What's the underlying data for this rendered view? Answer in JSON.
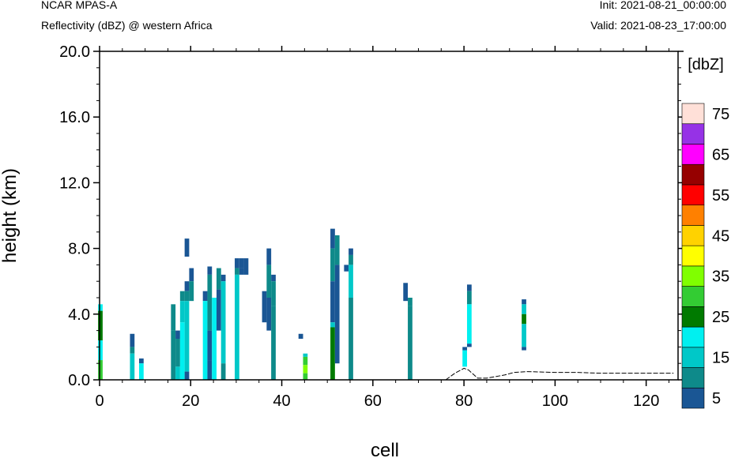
{
  "header": {
    "title": "NCAR MPAS-A",
    "subtitle": "Reflectivity (dBZ) @ western Africa",
    "init": "Init: 2021-08-21_00:00:00",
    "valid": "Valid: 2021-08-23_17:00:00"
  },
  "chart_data": {
    "type": "heatmap",
    "xlabel": "cell",
    "ylabel": "height (km)",
    "xlim": [
      0,
      127
    ],
    "ylim": [
      0,
      20
    ],
    "xticks": [
      0,
      20,
      40,
      60,
      80,
      100,
      120
    ],
    "xtick_labels": [
      "0",
      "20",
      "40",
      "60",
      "80",
      "100",
      "120"
    ],
    "yticks": [
      0,
      4,
      8,
      12,
      16,
      20
    ],
    "ytick_labels": [
      "0.0",
      "4.0",
      "8.0",
      "12.0",
      "16.0",
      "20.0"
    ],
    "colorbar": {
      "title": "[dbZ]",
      "levels": [
        5,
        10,
        15,
        20,
        25,
        30,
        35,
        40,
        45,
        50,
        55,
        60,
        65,
        70,
        75
      ],
      "labels": [
        "5",
        "15",
        "25",
        "35",
        "45",
        "55",
        "65",
        "75"
      ],
      "colors": [
        "#1a5694",
        "#0e8a8a",
        "#00c8c8",
        "#00f0f0",
        "#007a00",
        "#33cc33",
        "#80ff00",
        "#ffff00",
        "#ffd200",
        "#ff8000",
        "#ff0000",
        "#960000",
        "#ff00ff",
        "#9632e6",
        "#ffe0d8"
      ]
    },
    "cells": [
      [
        0,
        4.2,
        4.6,
        20
      ],
      [
        0,
        2.4,
        4.2,
        25
      ],
      [
        0,
        1.2,
        2.4,
        20
      ],
      [
        0,
        0,
        1.2,
        30
      ],
      [
        7,
        2.0,
        2.8,
        5
      ],
      [
        7,
        1.6,
        2.0,
        10
      ],
      [
        7,
        0,
        1.6,
        15
      ],
      [
        9,
        1.0,
        1.3,
        5
      ],
      [
        9,
        0,
        1.0,
        20
      ],
      [
        16,
        3.0,
        4.6,
        10
      ],
      [
        16,
        0,
        3.0,
        10
      ],
      [
        17,
        2.5,
        3.0,
        5
      ],
      [
        17,
        0.8,
        2.5,
        10
      ],
      [
        17,
        0,
        0.8,
        15
      ],
      [
        18,
        4.8,
        5.4,
        10
      ],
      [
        18,
        3.5,
        4.8,
        15
      ],
      [
        18,
        0,
        3.5,
        20
      ],
      [
        19,
        7.5,
        8.6,
        5
      ],
      [
        19,
        5.4,
        6.0,
        5
      ],
      [
        19,
        4.8,
        5.4,
        10
      ],
      [
        19,
        0.5,
        4.8,
        15
      ],
      [
        19,
        0,
        0.5,
        5
      ],
      [
        20,
        6.0,
        6.8,
        5
      ],
      [
        20,
        4.8,
        6.0,
        10
      ],
      [
        23,
        4.8,
        5.4,
        5
      ],
      [
        23,
        0,
        4.8,
        20
      ],
      [
        24,
        6.4,
        6.9,
        5
      ],
      [
        24,
        3.0,
        6.4,
        10
      ],
      [
        24,
        1.2,
        3.0,
        5
      ],
      [
        24,
        0,
        1.2,
        5
      ],
      [
        25,
        0,
        5.0,
        20
      ],
      [
        26,
        5.5,
        6.8,
        10
      ],
      [
        26,
        3.0,
        5.5,
        5
      ],
      [
        27,
        6.0,
        6.4,
        5
      ],
      [
        27,
        1.0,
        6.0,
        15
      ],
      [
        27,
        0,
        1.0,
        10
      ],
      [
        30,
        6.8,
        7.4,
        5
      ],
      [
        30,
        6.4,
        6.8,
        10
      ],
      [
        30,
        0,
        6.4,
        15
      ],
      [
        31,
        6.8,
        7.4,
        5
      ],
      [
        31,
        6.4,
        6.8,
        5
      ],
      [
        32,
        6.4,
        7.4,
        5
      ],
      [
        36,
        3.5,
        5.4,
        5
      ],
      [
        37,
        7.0,
        8.0,
        5
      ],
      [
        37,
        5.0,
        7.0,
        10
      ],
      [
        37,
        3.0,
        5.0,
        5
      ],
      [
        38,
        6.0,
        6.4,
        5
      ],
      [
        38,
        4.5,
        6.0,
        10
      ],
      [
        38,
        0,
        4.5,
        10
      ],
      [
        44,
        2.5,
        2.8,
        5
      ],
      [
        45,
        1.4,
        1.6,
        15
      ],
      [
        45,
        0.9,
        1.4,
        30
      ],
      [
        45,
        0.4,
        0.9,
        35
      ],
      [
        45,
        0,
        0.4,
        30
      ],
      [
        51,
        8.0,
        9.2,
        5
      ],
      [
        51,
        6.0,
        8.0,
        10
      ],
      [
        51,
        3.5,
        6.0,
        5
      ],
      [
        51,
        3.2,
        3.5,
        15
      ],
      [
        51,
        2.5,
        3.2,
        25
      ],
      [
        51,
        0,
        2.5,
        25
      ],
      [
        52,
        7.0,
        8.8,
        10
      ],
      [
        52,
        1.0,
        7.0,
        5
      ],
      [
        54,
        6.6,
        7.0,
        5
      ],
      [
        55,
        7.6,
        8.0,
        5
      ],
      [
        55,
        7.0,
        7.6,
        10
      ],
      [
        55,
        5.0,
        7.0,
        15
      ],
      [
        55,
        0,
        5.0,
        10
      ],
      [
        67,
        5.0,
        5.9,
        5
      ],
      [
        67,
        4.8,
        5.0,
        5
      ],
      [
        68,
        4.5,
        5.0,
        10
      ],
      [
        68,
        0,
        4.5,
        10
      ],
      [
        80,
        1.8,
        2.0,
        5
      ],
      [
        80,
        0.8,
        1.8,
        20
      ],
      [
        81,
        5.4,
        5.8,
        5
      ],
      [
        81,
        4.6,
        5.4,
        10
      ],
      [
        81,
        2.2,
        4.6,
        20
      ],
      [
        81,
        2.0,
        2.2,
        5
      ],
      [
        93,
        4.6,
        4.9,
        5
      ],
      [
        93,
        4.0,
        4.6,
        15
      ],
      [
        93,
        3.4,
        4.0,
        25
      ],
      [
        93,
        2.0,
        3.4,
        15
      ],
      [
        93,
        1.8,
        2.0,
        5
      ]
    ],
    "terrain": [
      [
        76,
        0
      ],
      [
        78,
        0.4
      ],
      [
        80,
        0.7
      ],
      [
        81,
        0.6
      ],
      [
        83,
        0.1
      ],
      [
        85,
        0.1
      ],
      [
        87,
        0.2
      ],
      [
        89,
        0.3
      ],
      [
        91,
        0.45
      ],
      [
        94,
        0.5
      ],
      [
        100,
        0.45
      ],
      [
        105,
        0.45
      ],
      [
        110,
        0.4
      ],
      [
        115,
        0.4
      ],
      [
        120,
        0.4
      ],
      [
        126,
        0.4
      ]
    ]
  }
}
